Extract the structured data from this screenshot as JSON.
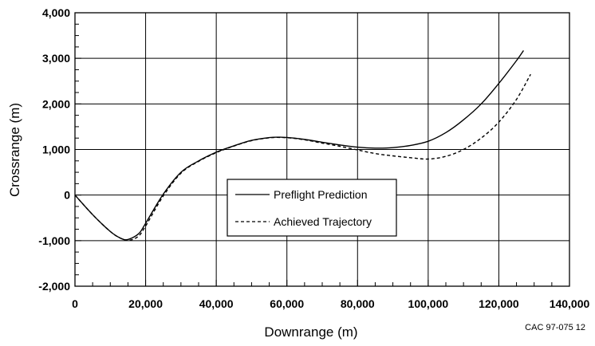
{
  "chart_data": {
    "type": "line",
    "xlabel": "Downrange (m)",
    "ylabel": "Crossrange (m)",
    "xlim": [
      0,
      140000
    ],
    "ylim": [
      -2000,
      4000
    ],
    "x_ticks": [
      0,
      20000,
      40000,
      60000,
      80000,
      100000,
      120000,
      140000
    ],
    "x_tick_labels": [
      "0",
      "20,000",
      "40,000",
      "60,000",
      "80,000",
      "100,000",
      "120,000",
      "140,000"
    ],
    "y_ticks": [
      -2000,
      -1000,
      0,
      1000,
      2000,
      3000,
      4000
    ],
    "y_tick_labels": [
      "-2,000",
      "-1,000",
      "0",
      "1,000",
      "2,000",
      "3,000",
      "4,000"
    ],
    "grid": true,
    "legend_position": "center-inside",
    "series": [
      {
        "name": "Preflight Prediction",
        "style": "solid",
        "x": [
          0,
          5000,
          10000,
          13000,
          15000,
          18000,
          20000,
          25000,
          30000,
          35000,
          40000,
          45000,
          50000,
          55000,
          58000,
          62000,
          66000,
          70000,
          75000,
          80000,
          85000,
          90000,
          95000,
          100000,
          105000,
          110000,
          115000,
          120000,
          125000,
          127000
        ],
        "y": [
          0,
          -430,
          -800,
          -950,
          -975,
          -850,
          -620,
          20,
          500,
          750,
          940,
          1080,
          1200,
          1260,
          1270,
          1250,
          1210,
          1160,
          1100,
          1050,
          1030,
          1040,
          1090,
          1180,
          1370,
          1650,
          2000,
          2450,
          2950,
          3170
        ]
      },
      {
        "name": "Achieved Trajectory",
        "style": "dashed",
        "x": [
          0,
          5000,
          10000,
          13000,
          15500,
          18000,
          20000,
          25000,
          30000,
          35000,
          40000,
          45000,
          50000,
          55000,
          58000,
          62000,
          66000,
          70000,
          75000,
          80000,
          85000,
          90000,
          95000,
          100000,
          105000,
          110000,
          115000,
          120000,
          125000,
          129000
        ],
        "y": [
          0,
          -430,
          -800,
          -950,
          -990,
          -900,
          -680,
          -20,
          480,
          740,
          930,
          1075,
          1195,
          1255,
          1265,
          1245,
          1200,
          1140,
          1070,
          990,
          910,
          860,
          820,
          790,
          850,
          1000,
          1250,
          1600,
          2100,
          2650
        ]
      }
    ],
    "annotation": "CAC 97-075 12"
  }
}
